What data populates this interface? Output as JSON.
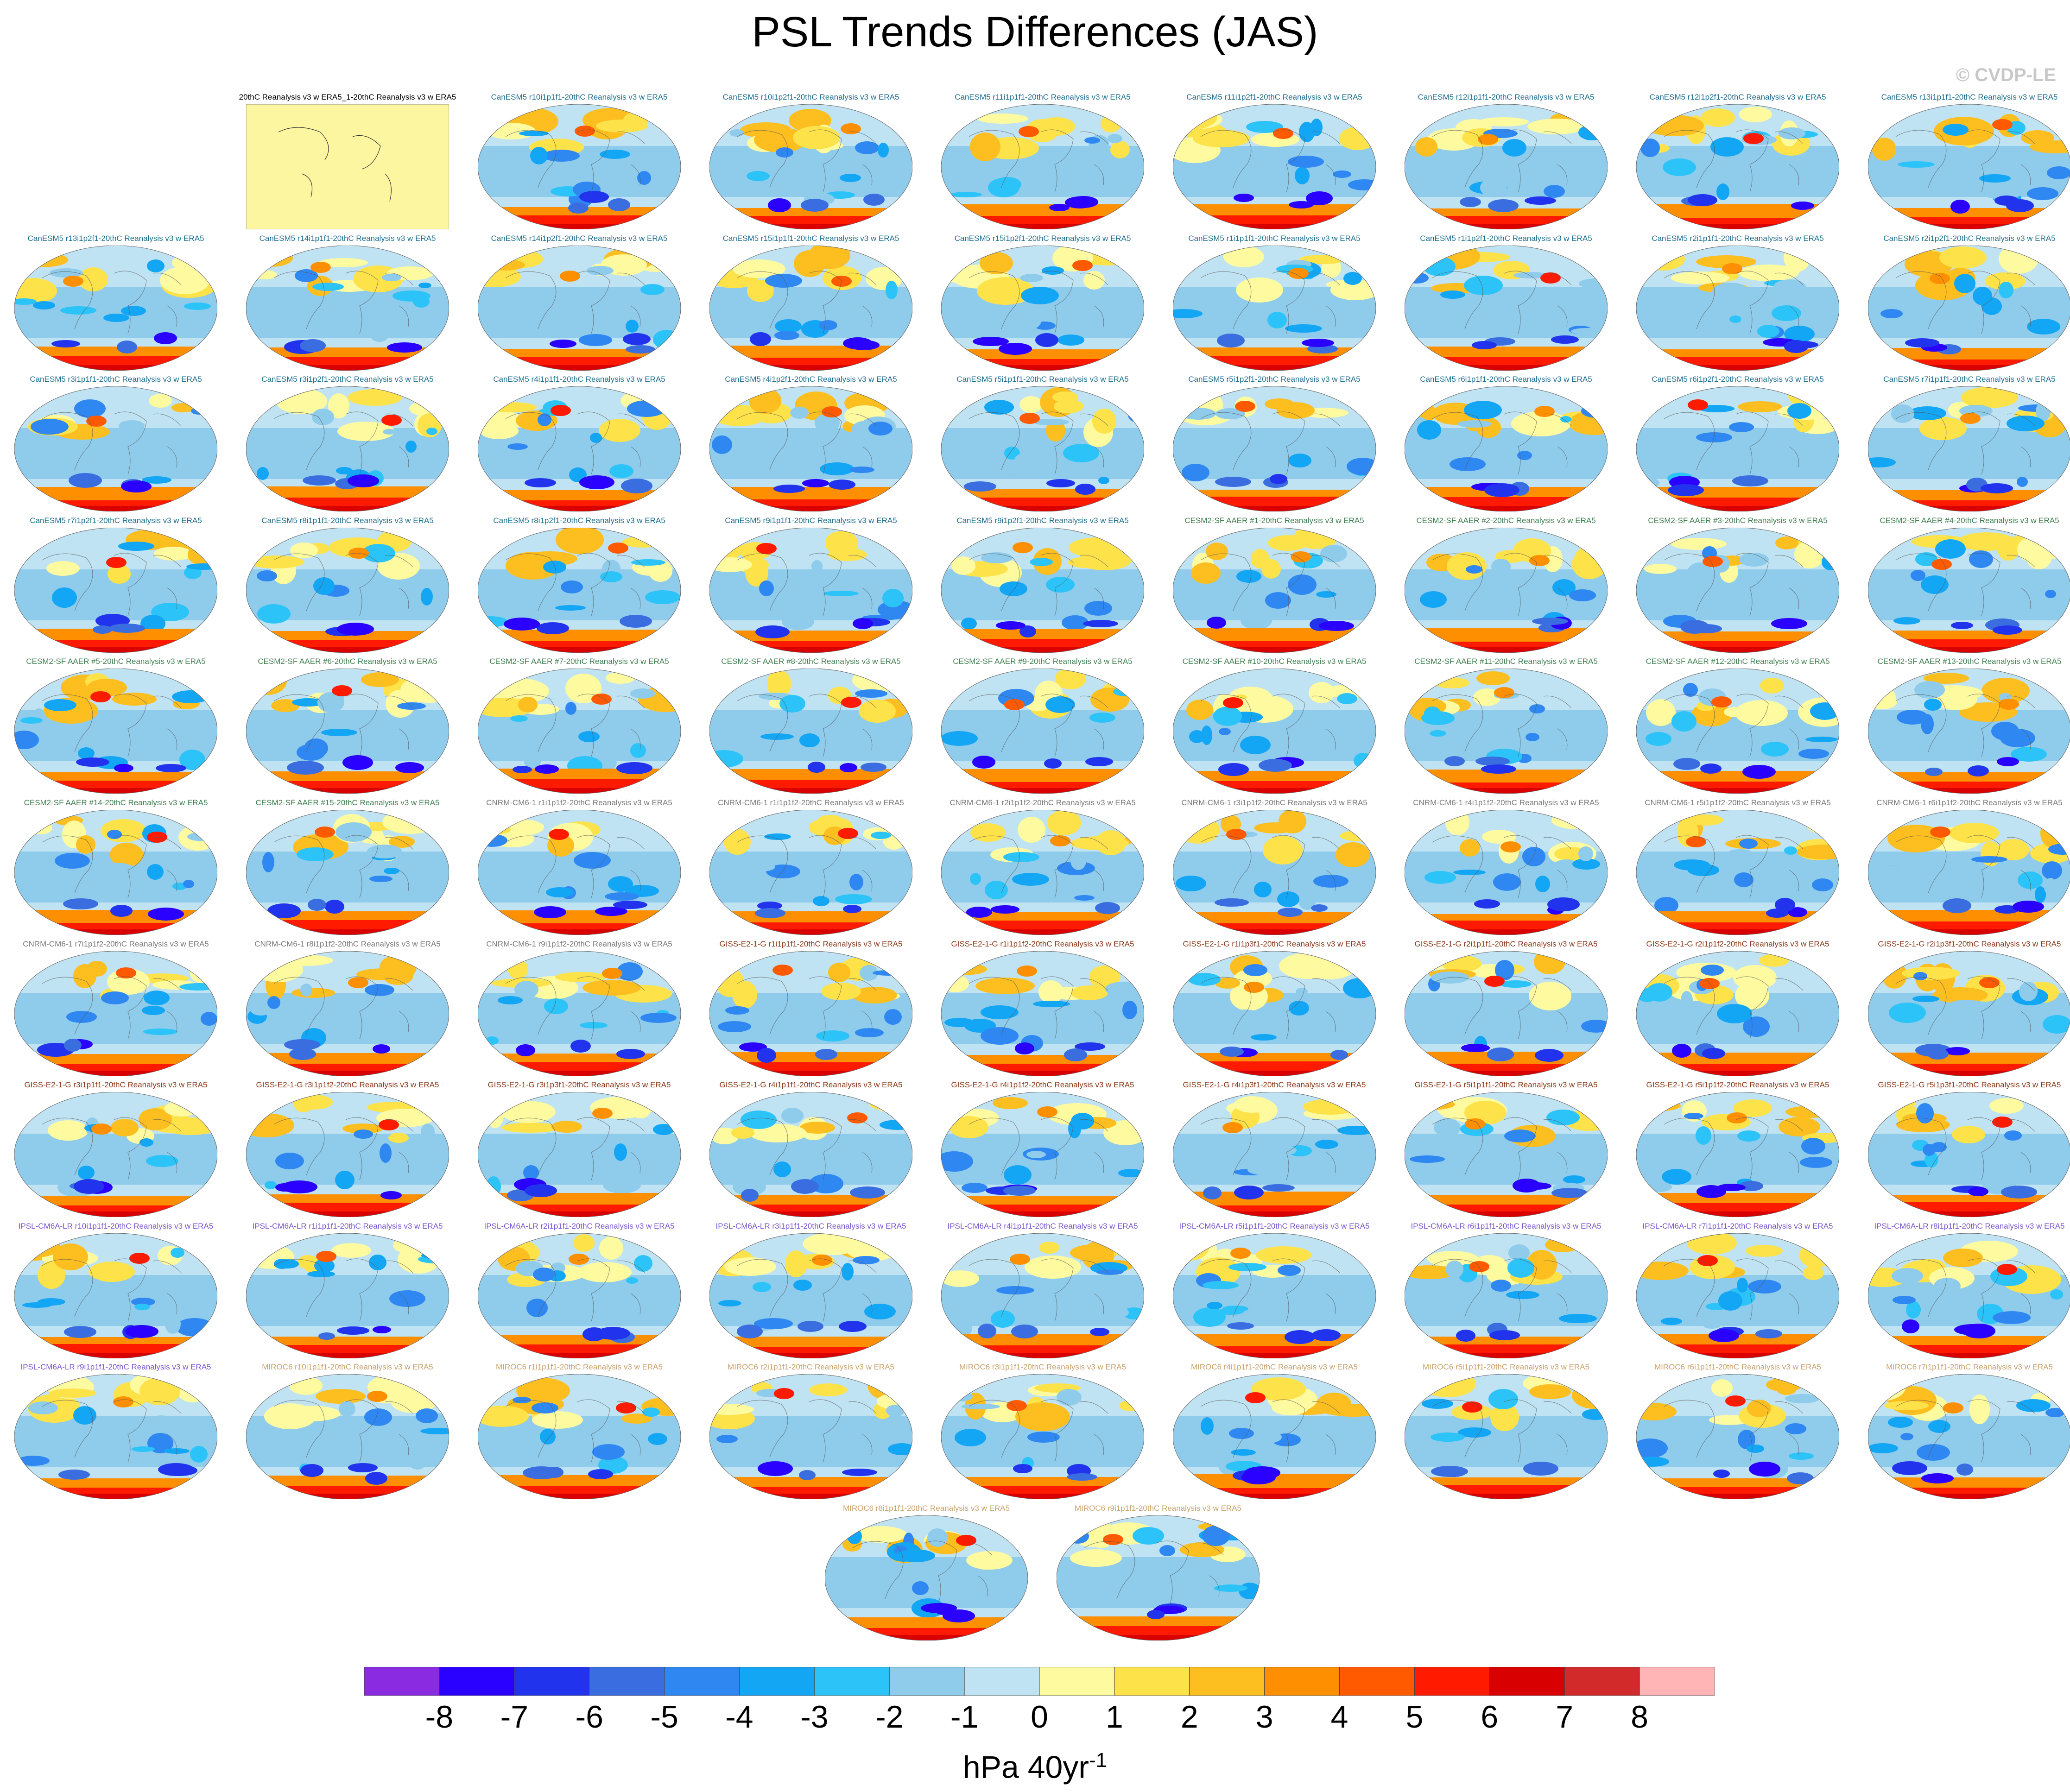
{
  "title": "PSL Trends Differences (JAS)",
  "watermark": "© CVDP-LE",
  "label_colors": {
    "ref": "#000000",
    "CanESM5": "#1d6e8f",
    "CESM2-SF AAER": "#3f7f4f",
    "CNRM-CM6-1": "#7a7a7a",
    "GISS-E2-1-G": "#8b3a1a",
    "IPSL-CM6A-LR": "#7a55cf",
    "MIROC6": "#c9a16b"
  },
  "colorbar": {
    "colors": [
      "#8a2be2",
      "#2a00ff",
      "#2233ee",
      "#3a6ee0",
      "#2f88f2",
      "#13a6f5",
      "#2cc4f8",
      "#8fcbeb",
      "#bfe3f2",
      "#fdfaa0",
      "#fee24a",
      "#fdbe20",
      "#fd8f00",
      "#ff5a00",
      "#ff1a00",
      "#d80000",
      "#d22a2a",
      "#ffb5b5"
    ],
    "ticks": [
      "-8",
      "-7",
      "-6",
      "-5",
      "-4",
      "-3",
      "-2",
      "-1",
      "0",
      "1",
      "2",
      "3",
      "4",
      "5",
      "6",
      "7",
      "8"
    ]
  },
  "units": {
    "main": "hPa 40yr",
    "exponent": "-1"
  },
  "panels": [
    {
      "label": "20thC Reanalysis v3 w ERA5_1-20thC Reanalysis v3 w ERA5",
      "model": "ref",
      "flat": true
    },
    {
      "label": "CanESM5 r10i1p1f1-20thC Reanalysis v3 w ERA5",
      "model": "CanESM5"
    },
    {
      "label": "CanESM5 r10i1p2f1-20thC Reanalysis v3 w ERA5",
      "model": "CanESM5"
    },
    {
      "label": "CanESM5 r11i1p1f1-20thC Reanalysis v3 w ERA5",
      "model": "CanESM5"
    },
    {
      "label": "CanESM5 r11i1p2f1-20thC Reanalysis v3 w ERA5",
      "model": "CanESM5"
    },
    {
      "label": "CanESM5 r12i1p1f1-20thC Reanalysis v3 w ERA5",
      "model": "CanESM5"
    },
    {
      "label": "CanESM5 r12i1p2f1-20thC Reanalysis v3 w ERA5",
      "model": "CanESM5"
    },
    {
      "label": "CanESM5 r13i1p1f1-20thC Reanalysis v3 w ERA5",
      "model": "CanESM5"
    },
    {
      "label": "CanESM5 r13i1p2f1-20thC Reanalysis v3 w ERA5",
      "model": "CanESM5"
    },
    {
      "label": "CanESM5 r14i1p1f1-20thC Reanalysis v3 w ERA5",
      "model": "CanESM5"
    },
    {
      "label": "CanESM5 r14i1p2f1-20thC Reanalysis v3 w ERA5",
      "model": "CanESM5"
    },
    {
      "label": "CanESM5 r15i1p1f1-20thC Reanalysis v3 w ERA5",
      "model": "CanESM5"
    },
    {
      "label": "CanESM5 r15i1p2f1-20thC Reanalysis v3 w ERA5",
      "model": "CanESM5"
    },
    {
      "label": "CanESM5 r1i1p1f1-20thC Reanalysis v3 w ERA5",
      "model": "CanESM5"
    },
    {
      "label": "CanESM5 r1i1p2f1-20thC Reanalysis v3 w ERA5",
      "model": "CanESM5"
    },
    {
      "label": "CanESM5 r2i1p1f1-20thC Reanalysis v3 w ERA5",
      "model": "CanESM5"
    },
    {
      "label": "CanESM5 r2i1p2f1-20thC Reanalysis v3 w ERA5",
      "model": "CanESM5"
    },
    {
      "label": "CanESM5 r3i1p1f1-20thC Reanalysis v3 w ERA5",
      "model": "CanESM5"
    },
    {
      "label": "CanESM5 r3i1p2f1-20thC Reanalysis v3 w ERA5",
      "model": "CanESM5"
    },
    {
      "label": "CanESM5 r4i1p1f1-20thC Reanalysis v3 w ERA5",
      "model": "CanESM5"
    },
    {
      "label": "CanESM5 r4i1p2f1-20thC Reanalysis v3 w ERA5",
      "model": "CanESM5"
    },
    {
      "label": "CanESM5 r5i1p1f1-20thC Reanalysis v3 w ERA5",
      "model": "CanESM5"
    },
    {
      "label": "CanESM5 r5i1p2f1-20thC Reanalysis v3 w ERA5",
      "model": "CanESM5"
    },
    {
      "label": "CanESM5 r6i1p1f1-20thC Reanalysis v3 w ERA5",
      "model": "CanESM5"
    },
    {
      "label": "CanESM5 r6i1p2f1-20thC Reanalysis v3 w ERA5",
      "model": "CanESM5"
    },
    {
      "label": "CanESM5 r7i1p1f1-20thC Reanalysis v3 w ERA5",
      "model": "CanESM5"
    },
    {
      "label": "CanESM5 r7i1p2f1-20thC Reanalysis v3 w ERA5",
      "model": "CanESM5"
    },
    {
      "label": "CanESM5 r8i1p1f1-20thC Reanalysis v3 w ERA5",
      "model": "CanESM5"
    },
    {
      "label": "CanESM5 r8i1p2f1-20thC Reanalysis v3 w ERA5",
      "model": "CanESM5"
    },
    {
      "label": "CanESM5 r9i1p1f1-20thC Reanalysis v3 w ERA5",
      "model": "CanESM5"
    },
    {
      "label": "CanESM5 r9i1p2f1-20thC Reanalysis v3 w ERA5",
      "model": "CanESM5"
    },
    {
      "label": "CESM2-SF AAER #1-20thC Reanalysis v3 w ERA5",
      "model": "CESM2-SF AAER"
    },
    {
      "label": "CESM2-SF AAER #2-20thC Reanalysis v3 w ERA5",
      "model": "CESM2-SF AAER"
    },
    {
      "label": "CESM2-SF AAER #3-20thC Reanalysis v3 w ERA5",
      "model": "CESM2-SF AAER"
    },
    {
      "label": "CESM2-SF AAER #4-20thC Reanalysis v3 w ERA5",
      "model": "CESM2-SF AAER"
    },
    {
      "label": "CESM2-SF AAER #5-20thC Reanalysis v3 w ERA5",
      "model": "CESM2-SF AAER"
    },
    {
      "label": "CESM2-SF AAER #6-20thC Reanalysis v3 w ERA5",
      "model": "CESM2-SF AAER"
    },
    {
      "label": "CESM2-SF AAER #7-20thC Reanalysis v3 w ERA5",
      "model": "CESM2-SF AAER"
    },
    {
      "label": "CESM2-SF AAER #8-20thC Reanalysis v3 w ERA5",
      "model": "CESM2-SF AAER"
    },
    {
      "label": "CESM2-SF AAER #9-20thC Reanalysis v3 w ERA5",
      "model": "CESM2-SF AAER"
    },
    {
      "label": "CESM2-SF AAER #10-20thC Reanalysis v3 w ERA5",
      "model": "CESM2-SF AAER"
    },
    {
      "label": "CESM2-SF AAER #11-20thC Reanalysis v3 w ERA5",
      "model": "CESM2-SF AAER"
    },
    {
      "label": "CESM2-SF AAER #12-20thC Reanalysis v3 w ERA5",
      "model": "CESM2-SF AAER"
    },
    {
      "label": "CESM2-SF AAER #13-20thC Reanalysis v3 w ERA5",
      "model": "CESM2-SF AAER"
    },
    {
      "label": "CESM2-SF AAER #14-20thC Reanalysis v3 w ERA5",
      "model": "CESM2-SF AAER"
    },
    {
      "label": "CESM2-SF AAER #15-20thC Reanalysis v3 w ERA5",
      "model": "CESM2-SF AAER"
    },
    {
      "label": "CNRM-CM6-1 r1i1p1f2-20thC Reanalysis v3 w ERA5",
      "model": "CNRM-CM6-1"
    },
    {
      "label": "CNRM-CM6-1 r1i1p1f2-20thC Reanalysis v3 w ERA5",
      "model": "CNRM-CM6-1"
    },
    {
      "label": "CNRM-CM6-1 r2i1p1f2-20thC Reanalysis v3 w ERA5",
      "model": "CNRM-CM6-1"
    },
    {
      "label": "CNRM-CM6-1 r3i1p1f2-20thC Reanalysis v3 w ERA5",
      "model": "CNRM-CM6-1"
    },
    {
      "label": "CNRM-CM6-1 r4i1p1f2-20thC Reanalysis v3 w ERA5",
      "model": "CNRM-CM6-1"
    },
    {
      "label": "CNRM-CM6-1 r5i1p1f2-20thC Reanalysis v3 w ERA5",
      "model": "CNRM-CM6-1"
    },
    {
      "label": "CNRM-CM6-1 r6i1p1f2-20thC Reanalysis v3 w ERA5",
      "model": "CNRM-CM6-1"
    },
    {
      "label": "CNRM-CM6-1 r7i1p1f2-20thC Reanalysis v3 w ERA5",
      "model": "CNRM-CM6-1"
    },
    {
      "label": "CNRM-CM6-1 r8i1p1f2-20thC Reanalysis v3 w ERA5",
      "model": "CNRM-CM6-1"
    },
    {
      "label": "CNRM-CM6-1 r9i1p1f2-20thC Reanalysis v3 w ERA5",
      "model": "CNRM-CM6-1"
    },
    {
      "label": "GISS-E2-1-G r1i1p1f1-20thC Reanalysis v3 w ERA5",
      "model": "GISS-E2-1-G"
    },
    {
      "label": "GISS-E2-1-G r1i1p1f2-20thC Reanalysis v3 w ERA5",
      "model": "GISS-E2-1-G"
    },
    {
      "label": "GISS-E2-1-G r1i1p3f1-20thC Reanalysis v3 w ERA5",
      "model": "GISS-E2-1-G"
    },
    {
      "label": "GISS-E2-1-G r2i1p1f1-20thC Reanalysis v3 w ERA5",
      "model": "GISS-E2-1-G"
    },
    {
      "label": "GISS-E2-1-G r2i1p1f2-20thC Reanalysis v3 w ERA5",
      "model": "GISS-E2-1-G"
    },
    {
      "label": "GISS-E2-1-G r2i1p3f1-20thC Reanalysis v3 w ERA5",
      "model": "GISS-E2-1-G"
    },
    {
      "label": "GISS-E2-1-G r3i1p1f1-20thC Reanalysis v3 w ERA5",
      "model": "GISS-E2-1-G"
    },
    {
      "label": "GISS-E2-1-G r3i1p1f2-20thC Reanalysis v3 w ERA5",
      "model": "GISS-E2-1-G"
    },
    {
      "label": "GISS-E2-1-G r3i1p3f1-20thC Reanalysis v3 w ERA5",
      "model": "GISS-E2-1-G"
    },
    {
      "label": "GISS-E2-1-G r4i1p1f1-20thC Reanalysis v3 w ERA5",
      "model": "GISS-E2-1-G"
    },
    {
      "label": "GISS-E2-1-G r4i1p1f2-20thC Reanalysis v3 w ERA5",
      "model": "GISS-E2-1-G"
    },
    {
      "label": "GISS-E2-1-G r4i1p3f1-20thC Reanalysis v3 w ERA5",
      "model": "GISS-E2-1-G"
    },
    {
      "label": "GISS-E2-1-G r5i1p1f1-20thC Reanalysis v3 w ERA5",
      "model": "GISS-E2-1-G"
    },
    {
      "label": "GISS-E2-1-G r5i1p1f2-20thC Reanalysis v3 w ERA5",
      "model": "GISS-E2-1-G"
    },
    {
      "label": "GISS-E2-1-G r5i1p3f1-20thC Reanalysis v3 w ERA5",
      "model": "GISS-E2-1-G"
    },
    {
      "label": "IPSL-CM6A-LR r10i1p1f1-20thC Reanalysis v3 w ERA5",
      "model": "IPSL-CM6A-LR"
    },
    {
      "label": "IPSL-CM6A-LR r1i1p1f1-20thC Reanalysis v3 w ERA5",
      "model": "IPSL-CM6A-LR"
    },
    {
      "label": "IPSL-CM6A-LR r2i1p1f1-20thC Reanalysis v3 w ERA5",
      "model": "IPSL-CM6A-LR"
    },
    {
      "label": "IPSL-CM6A-LR r3i1p1f1-20thC Reanalysis v3 w ERA5",
      "model": "IPSL-CM6A-LR"
    },
    {
      "label": "IPSL-CM6A-LR r4i1p1f1-20thC Reanalysis v3 w ERA5",
      "model": "IPSL-CM6A-LR"
    },
    {
      "label": "IPSL-CM6A-LR r5i1p1f1-20thC Reanalysis v3 w ERA5",
      "model": "IPSL-CM6A-LR"
    },
    {
      "label": "IPSL-CM6A-LR r6i1p1f1-20thC Reanalysis v3 w ERA5",
      "model": "IPSL-CM6A-LR"
    },
    {
      "label": "IPSL-CM6A-LR r7i1p1f1-20thC Reanalysis v3 w ERA5",
      "model": "IPSL-CM6A-LR"
    },
    {
      "label": "IPSL-CM6A-LR r8i1p1f1-20thC Reanalysis v3 w ERA5",
      "model": "IPSL-CM6A-LR"
    },
    {
      "label": "IPSL-CM6A-LR r9i1p1f1-20thC Reanalysis v3 w ERA5",
      "model": "IPSL-CM6A-LR"
    },
    {
      "label": "MIROC6 r10i1p1f1-20thC Reanalysis v3 w ERA5",
      "model": "MIROC6"
    },
    {
      "label": "MIROC6 r1i1p1f1-20thC Reanalysis v3 w ERA5",
      "model": "MIROC6"
    },
    {
      "label": "MIROC6 r2i1p1f1-20thC Reanalysis v3 w ERA5",
      "model": "MIROC6"
    },
    {
      "label": "MIROC6 r3i1p1f1-20thC Reanalysis v3 w ERA5",
      "model": "MIROC6"
    },
    {
      "label": "MIROC6 r4i1p1f1-20thC Reanalysis v3 w ERA5",
      "model": "MIROC6"
    },
    {
      "label": "MIROC6 r5i1p1f1-20thC Reanalysis v3 w ERA5",
      "model": "MIROC6"
    },
    {
      "label": "MIROC6 r6i1p1f1-20thC Reanalysis v3 w ERA5",
      "model": "MIROC6"
    },
    {
      "label": "MIROC6 r7i1p1f1-20thC Reanalysis v3 w ERA5",
      "model": "MIROC6"
    },
    {
      "label": "MIROC6 r8i1p1f1-20thC Reanalysis v3 w ERA5",
      "model": "MIROC6"
    },
    {
      "label": "MIROC6 r9i1p1f1-20thC Reanalysis v3 w ERA5",
      "model": "MIROC6"
    }
  ]
}
